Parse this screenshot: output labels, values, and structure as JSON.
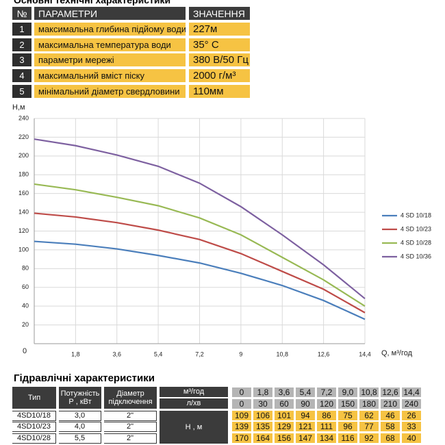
{
  "header": {
    "title": "Основні технічні характеристики"
  },
  "params": {
    "columns": [
      "№",
      "ПАРАМЕТРИ",
      "ЗНАЧЕННЯ"
    ],
    "rows": [
      [
        "1",
        "максимальна глибина підйому води",
        "227м"
      ],
      [
        "2",
        "максимальна температура води",
        "35° С"
      ],
      [
        "3",
        "параметри мережі",
        "380 В/50 Гц"
      ],
      [
        "4",
        "максимальний вміст піску",
        "2000 г/м³"
      ],
      [
        "5",
        "мінімальний діаметр свердловини",
        "110мм"
      ]
    ]
  },
  "chart_data": {
    "type": "line",
    "y_label": "Н,м",
    "x_label": "Q, м³/год",
    "x": [
      0,
      1.8,
      3.6,
      5.4,
      7.2,
      9,
      10.8,
      12.6,
      14.4
    ],
    "xlim": [
      0,
      14.4
    ],
    "xticks": [
      {
        "value": 0,
        "label": "0"
      },
      {
        "value": 1.8,
        "label": "1,8"
      },
      {
        "value": 3.6,
        "label": "3,6"
      },
      {
        "value": 5.4,
        "label": "5,4"
      },
      {
        "value": 7.2,
        "label": "7,2"
      },
      9,
      {
        "value": 10.8,
        "label": "10,8"
      },
      {
        "value": 12.6,
        "label": "12,6"
      },
      {
        "value": 14.4,
        "label": "14,4"
      }
    ],
    "ylim": [
      0,
      240
    ],
    "yticks": [
      20,
      40,
      60,
      80,
      100,
      120,
      140,
      160,
      180,
      200,
      220,
      240
    ],
    "grid": true,
    "legend": "right",
    "series": [
      {
        "name": "4 SD 10/18",
        "color": "#4a7ebb",
        "values": [
          109,
          106,
          101,
          94,
          86,
          75,
          62,
          46,
          26
        ]
      },
      {
        "name": "4 SD 10/23",
        "color": "#be4b48",
        "values": [
          139,
          135,
          129,
          121,
          111,
          96,
          77,
          58,
          33
        ]
      },
      {
        "name": "4 SD 10/28",
        "color": "#98b954",
        "values": [
          170,
          164,
          156,
          147,
          134,
          116,
          92,
          68,
          40
        ]
      },
      {
        "name": "4 SD 10/36",
        "color": "#7d60a0",
        "values": [
          218,
          211,
          201,
          189,
          171,
          146,
          116,
          84,
          48
        ]
      }
    ]
  },
  "hydraulic": {
    "title": "Гідравлічні характеристики",
    "columns": [
      "Тип",
      "Потужність Р , кВт",
      "Діаметр підключення"
    ],
    "flow_unit": "м³/год",
    "flow": [
      "0",
      "1,8",
      "3,6",
      "5,4",
      "7,2",
      "9,0",
      "10,8",
      "12,6",
      "14,4"
    ],
    "rate_unit": "л/хв",
    "rate": [
      0,
      30,
      60,
      90,
      120,
      150,
      180,
      210,
      240
    ],
    "head_unit": "Н , м",
    "rows": [
      {
        "type": "4SD10/18",
        "power": "3,0",
        "diameter": "2\"",
        "values": [
          109,
          106,
          101,
          94,
          86,
          75,
          62,
          46,
          26
        ]
      },
      {
        "type": "4SD10/23",
        "power": "4,0",
        "diameter": "2\"",
        "values": [
          139,
          135,
          129,
          121,
          111,
          96,
          77,
          58,
          33
        ]
      },
      {
        "type": "4SD10/28",
        "power": "5,5",
        "diameter": "2\"",
        "values": [
          170,
          164,
          156,
          147,
          134,
          116,
          92,
          68,
          40
        ]
      }
    ]
  }
}
